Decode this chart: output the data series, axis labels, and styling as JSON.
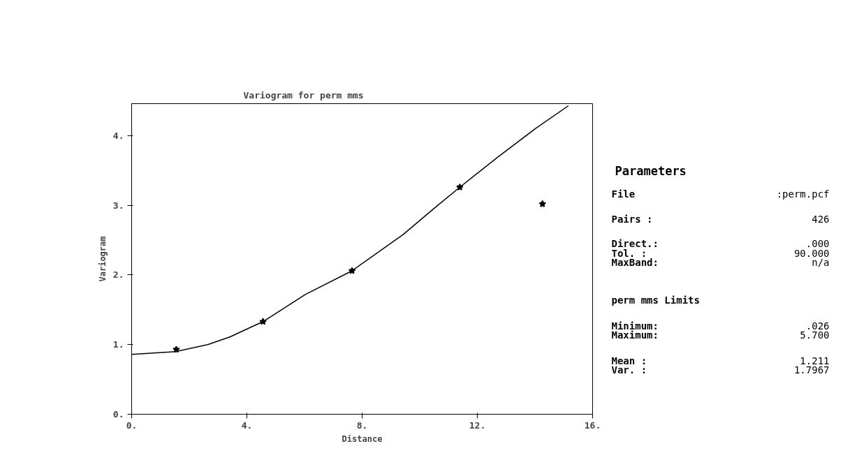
{
  "chart_data": {
    "type": "scatter",
    "title": "Variogram for perm  mms",
    "xlabel": "Distance",
    "ylabel": "Variogram",
    "xlim": [
      0,
      16
    ],
    "ylim": [
      0,
      4.46
    ],
    "xticks": [
      {
        "value": 0,
        "label": "0."
      },
      {
        "value": 4,
        "label": "4."
      },
      {
        "value": 8,
        "label": "8."
      },
      {
        "value": 12,
        "label": "12."
      },
      {
        "value": 16,
        "label": "16."
      }
    ],
    "yticks": [
      {
        "value": 0,
        "label": "0."
      },
      {
        "value": 1,
        "label": "1."
      },
      {
        "value": 2,
        "label": "2."
      },
      {
        "value": 3,
        "label": "3."
      },
      {
        "value": 4,
        "label": "4."
      }
    ],
    "grid": false,
    "series": [
      {
        "color": "#000000",
        "marker": "star",
        "x": [
          1.55,
          4.56,
          7.65,
          11.39,
          14.26
        ],
        "values": [
          0.93,
          1.33,
          2.06,
          3.26,
          3.02
        ]
      },
      {
        "type": "line",
        "color": "#000000",
        "marker": "none",
        "line_style": "solid",
        "x": [
          0,
          1.55,
          2.64,
          3.41,
          4.56,
          6.03,
          7.65,
          9.42,
          10.51,
          11.39,
          12.7,
          14.01,
          15.16
        ],
        "values": [
          0.86,
          0.9,
          1.0,
          1.11,
          1.33,
          1.72,
          2.06,
          2.58,
          2.96,
          3.26,
          3.69,
          4.1,
          4.43
        ]
      }
    ],
    "annotations": [
      "Parameters",
      "File",
      ":perm.pcf",
      "Pairs  :",
      "426",
      "Direct.:",
      ".000",
      "Tol.   :",
      "90.000",
      "MaxBand:",
      "n/a",
      "perm  mms Limits",
      "Minimum:",
      ".026",
      "Maximum:",
      "5.700",
      "Mean   :",
      "1.211",
      "Var.   :",
      "1.7967"
    ]
  }
}
